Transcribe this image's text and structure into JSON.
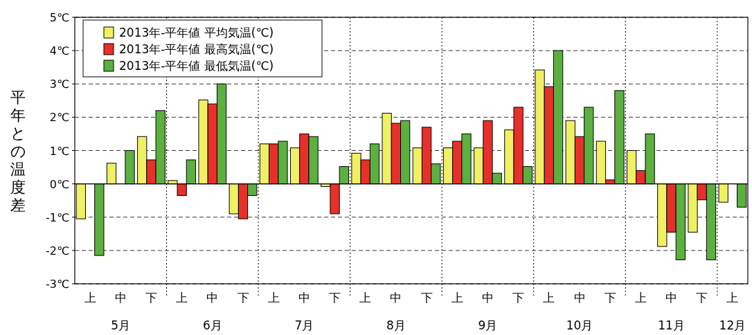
{
  "chart_data": {
    "type": "bar",
    "ylabel": "平年との温度差",
    "categories": [
      "上",
      "中",
      "下",
      "上",
      "中",
      "下",
      "上",
      "中",
      "下",
      "上",
      "中",
      "下",
      "上",
      "中",
      "下",
      "上",
      "中",
      "下",
      "上",
      "中",
      "下",
      "上"
    ],
    "series": [
      {
        "name": "2013年-平年値 平均気温(℃)",
        "color": "#f0f064",
        "values": [
          -1.05,
          0.62,
          1.42,
          0.1,
          2.52,
          -0.9,
          1.2,
          1.08,
          -0.08,
          0.92,
          2.12,
          1.08,
          1.08,
          1.08,
          1.62,
          3.42,
          1.9,
          1.28,
          1.0,
          -1.88,
          -1.45,
          -0.55
        ]
      },
      {
        "name": "2013年-平年値 最高気温(℃)",
        "color": "#e8302a",
        "values": [
          null,
          null,
          0.72,
          -0.35,
          2.4,
          -1.05,
          1.2,
          1.5,
          -0.9,
          0.72,
          1.82,
          1.7,
          1.28,
          1.9,
          2.3,
          2.92,
          1.42,
          0.12,
          0.4,
          -1.45,
          -0.48,
          null
        ]
      },
      {
        "name": "2013年-平年値 最低気温(℃)",
        "color": "#5cb040",
        "values": [
          -2.15,
          1.0,
          2.2,
          0.72,
          3.0,
          -0.35,
          1.28,
          1.42,
          0.52,
          1.2,
          1.9,
          0.6,
          1.5,
          0.32,
          0.52,
          4.0,
          2.3,
          2.8,
          1.5,
          -2.28,
          -2.28,
          -0.7
        ]
      }
    ],
    "ylim": [
      -3,
      5
    ],
    "yticks": [
      {
        "value": -3,
        "label": "-3℃"
      },
      {
        "value": -2,
        "label": "-2℃"
      },
      {
        "value": -1,
        "label": "-1℃"
      },
      {
        "value": 0,
        "label": "0℃"
      },
      {
        "value": 1,
        "label": "1℃"
      },
      {
        "value": 2,
        "label": "2℃"
      },
      {
        "value": 3,
        "label": "3℃"
      },
      {
        "value": 4,
        "label": "4℃"
      },
      {
        "value": 5,
        "label": "5℃"
      }
    ],
    "grid": "y",
    "legend": "top left",
    "annotations": [
      "5月",
      "6月",
      "7月",
      "8月",
      "9月",
      "10月",
      "11月",
      "12月"
    ]
  }
}
